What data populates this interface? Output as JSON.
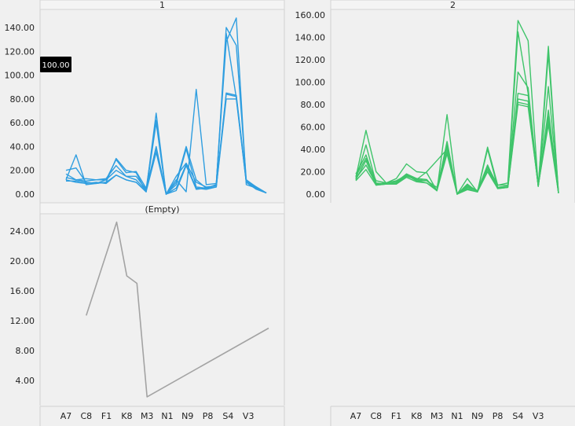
{
  "categories": [
    "A7",
    "C8",
    "F1",
    "K8",
    "M3",
    "N1",
    "N9",
    "P8",
    "S4",
    "V3"
  ],
  "tooltip": "100.00",
  "chart_data": [
    {
      "type": "line",
      "title": "1",
      "ylim": [
        -7,
        155
      ],
      "yticks": [
        "0.00",
        "20.00",
        "40.00",
        "60.00",
        "80.00",
        "100.00",
        "120.00",
        "140.00"
      ],
      "color": "#2f9ee0",
      "x": [
        0,
        0.5,
        1,
        1.5,
        2,
        2.5,
        3,
        3.5,
        4,
        4.5,
        5,
        5.5,
        6,
        6.5,
        7,
        7.5,
        8,
        8.5,
        9,
        9.5,
        10
      ],
      "series": [
        {
          "values": [
            20,
            22,
            10,
            9,
            10,
            30,
            20,
            18,
            2,
            68,
            0,
            10,
            40,
            12,
            5,
            8,
            140,
            125,
            12,
            6,
            1
          ]
        },
        {
          "values": [
            12,
            33,
            8,
            9,
            12,
            29,
            18,
            19,
            5,
            38,
            0,
            12,
            2,
            88,
            8,
            9,
            128,
            148,
            8,
            5,
            1
          ]
        },
        {
          "values": [
            17,
            12,
            13,
            12,
            12,
            20,
            15,
            12,
            3,
            40,
            0,
            15,
            26,
            10,
            6,
            7,
            85,
            83,
            12,
            5,
            1
          ]
        },
        {
          "values": [
            11,
            11,
            10,
            9,
            10,
            16,
            12,
            10,
            2,
            60,
            0,
            5,
            25,
            5,
            4,
            6,
            84,
            82,
            10,
            5,
            1
          ]
        },
        {
          "values": [
            12,
            10,
            9,
            10,
            9,
            16,
            12,
            10,
            2,
            35,
            0,
            3,
            24,
            4,
            5,
            6,
            80,
            80,
            10,
            4,
            1
          ]
        },
        {
          "values": [
            14,
            12,
            11,
            12,
            13,
            24,
            15,
            15,
            4,
            62,
            0,
            8,
            38,
            6,
            5,
            8,
            135,
            81,
            11,
            6,
            1
          ]
        }
      ]
    },
    {
      "type": "line",
      "title": "2",
      "ylim": [
        -8,
        164
      ],
      "yticks": [
        "0.00",
        "20.00",
        "40.00",
        "60.00",
        "80.00",
        "100.00",
        "120.00",
        "140.00",
        "160.00"
      ],
      "color": "#3fc46a",
      "x": [
        0,
        0.5,
        1,
        1.5,
        2,
        2.5,
        3,
        3.5,
        4,
        4.5,
        5,
        5.5,
        6,
        6.5,
        7,
        7.5,
        8,
        8.5,
        9,
        9.5,
        10
      ],
      "series": [
        {
          "values": [
            15,
            57,
            20,
            10,
            14,
            27,
            20,
            19,
            3,
            71,
            0,
            14,
            2,
            42,
            8,
            10,
            155,
            137,
            7,
            132,
            1
          ]
        },
        {
          "values": [
            13,
            44,
            10,
            9,
            10,
            18,
            14,
            13,
            3,
            47,
            0,
            9,
            2,
            40,
            6,
            7,
            109,
            95,
            7,
            96,
            1
          ]
        },
        {
          "values": [
            18,
            35,
            9,
            10,
            12,
            17,
            12,
            12,
            4,
            42,
            0,
            7,
            3,
            26,
            6,
            7,
            90,
            88,
            7,
            75,
            1
          ]
        },
        {
          "values": [
            13,
            30,
            8,
            9,
            9,
            17,
            12,
            10,
            4,
            38,
            0,
            5,
            2,
            24,
            5,
            6,
            85,
            83,
            7,
            70,
            1
          ]
        },
        {
          "values": [
            14,
            26,
            9,
            9,
            10,
            16,
            13,
            20,
            30,
            40,
            0,
            6,
            3,
            22,
            5,
            7,
            82,
            80,
            8,
            66,
            1
          ]
        },
        {
          "values": [
            12,
            22,
            8,
            9,
            9,
            15,
            11,
            10,
            3,
            36,
            0,
            4,
            2,
            20,
            5,
            6,
            80,
            78,
            8,
            62,
            1
          ]
        },
        {
          "values": [
            16,
            32,
            12,
            10,
            11,
            18,
            13,
            12,
            6,
            44,
            0,
            8,
            3,
            25,
            8,
            8,
            145,
            90,
            7,
            125,
            1
          ]
        }
      ]
    },
    {
      "type": "line",
      "title": "(Empty)",
      "ylim": [
        0.9,
        26
      ],
      "yticks": [
        "4.00",
        "8.00",
        "12.00",
        "16.00",
        "20.00",
        "24.00"
      ],
      "color": "#a3a3a3",
      "x": [
        1,
        2.5,
        3,
        3.5,
        4,
        10
      ],
      "series": [
        {
          "values": [
            12.7,
            25.2,
            18,
            17,
            1.8,
            11
          ]
        }
      ]
    }
  ]
}
